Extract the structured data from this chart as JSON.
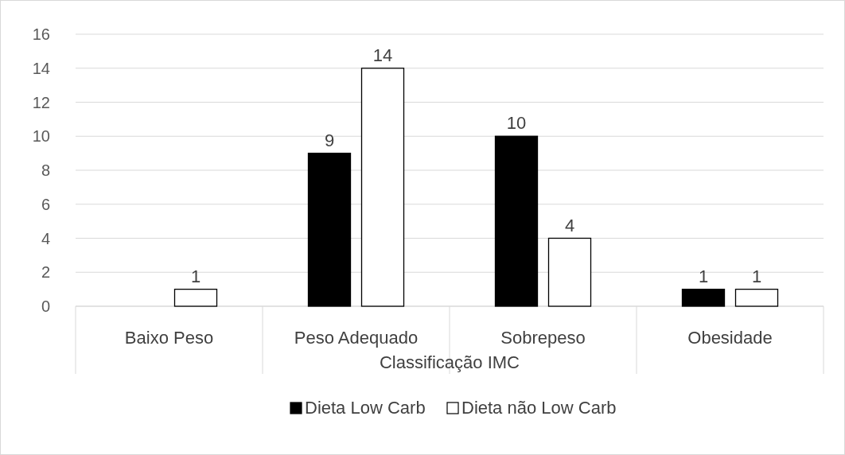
{
  "chart_data": {
    "type": "bar",
    "xlabel": "Classificação IMC",
    "categories": [
      "Baixo Peso",
      "Peso Adequado",
      "Sobrepeso",
      "Obesidade"
    ],
    "series": [
      {
        "name": "Dieta Low Carb",
        "color": "#000000",
        "values": [
          0,
          9,
          10,
          1
        ],
        "value_labels": [
          null,
          "9",
          "10",
          "1"
        ]
      },
      {
        "name": "Dieta não Low Carb",
        "color": "#ffffff",
        "values": [
          1,
          14,
          4,
          1
        ],
        "value_labels": [
          "1",
          "14",
          "4",
          "1"
        ]
      }
    ],
    "ylim": [
      0,
      16
    ],
    "yticks": [
      0,
      2,
      4,
      6,
      8,
      10,
      12,
      14,
      16
    ],
    "grid": "y",
    "legend": "bottom"
  }
}
